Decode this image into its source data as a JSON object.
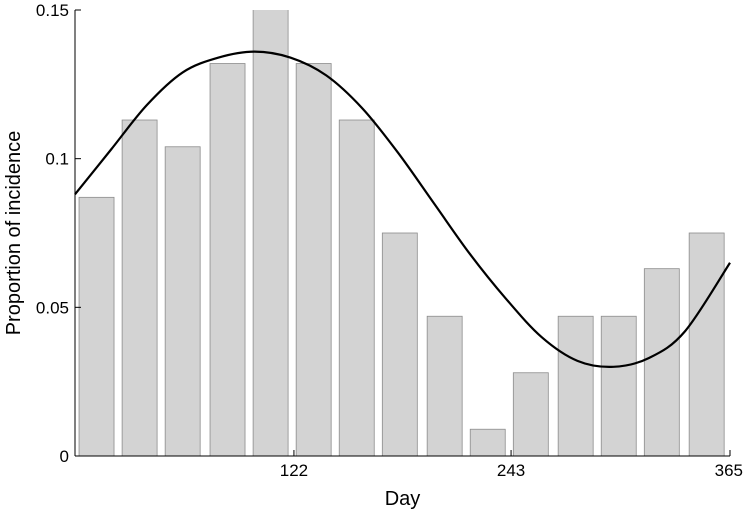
{
  "chart_data": {
    "type": "bar",
    "xlabel": "Day",
    "ylabel": "Proportion of incidence",
    "xlim": [
      0,
      365
    ],
    "ylim": [
      0,
      0.15
    ],
    "x_ticks": [
      122,
      243,
      365
    ],
    "x_tick_labels": [
      "122",
      "243",
      "365"
    ],
    "y_ticks": [
      0,
      0.05,
      0.1,
      0.15
    ],
    "y_tick_labels": [
      "0",
      "0.05",
      "0.1",
      "0.15"
    ],
    "bar_width_days": 19.5,
    "series": [
      {
        "type": "bar",
        "x": [
          12,
          36,
          60,
          85,
          109,
          133,
          157,
          181,
          206,
          230,
          254,
          279,
          303,
          327,
          352
        ],
        "values": [
          0.087,
          0.113,
          0.104,
          0.132,
          0.151,
          0.132,
          0.113,
          0.075,
          0.047,
          0.009,
          0.028,
          0.047,
          0.047,
          0.063,
          0.075
        ]
      },
      {
        "type": "line",
        "x": [
          0,
          20,
          40,
          60,
          80,
          100,
          120,
          140,
          160,
          180,
          200,
          220,
          240,
          260,
          280,
          300,
          320,
          340,
          365
        ],
        "values": [
          0.088,
          0.103,
          0.118,
          0.129,
          0.134,
          0.136,
          0.134,
          0.128,
          0.117,
          0.102,
          0.085,
          0.068,
          0.053,
          0.04,
          0.032,
          0.03,
          0.033,
          0.042,
          0.065
        ]
      }
    ],
    "grid": false,
    "legend": "none"
  }
}
